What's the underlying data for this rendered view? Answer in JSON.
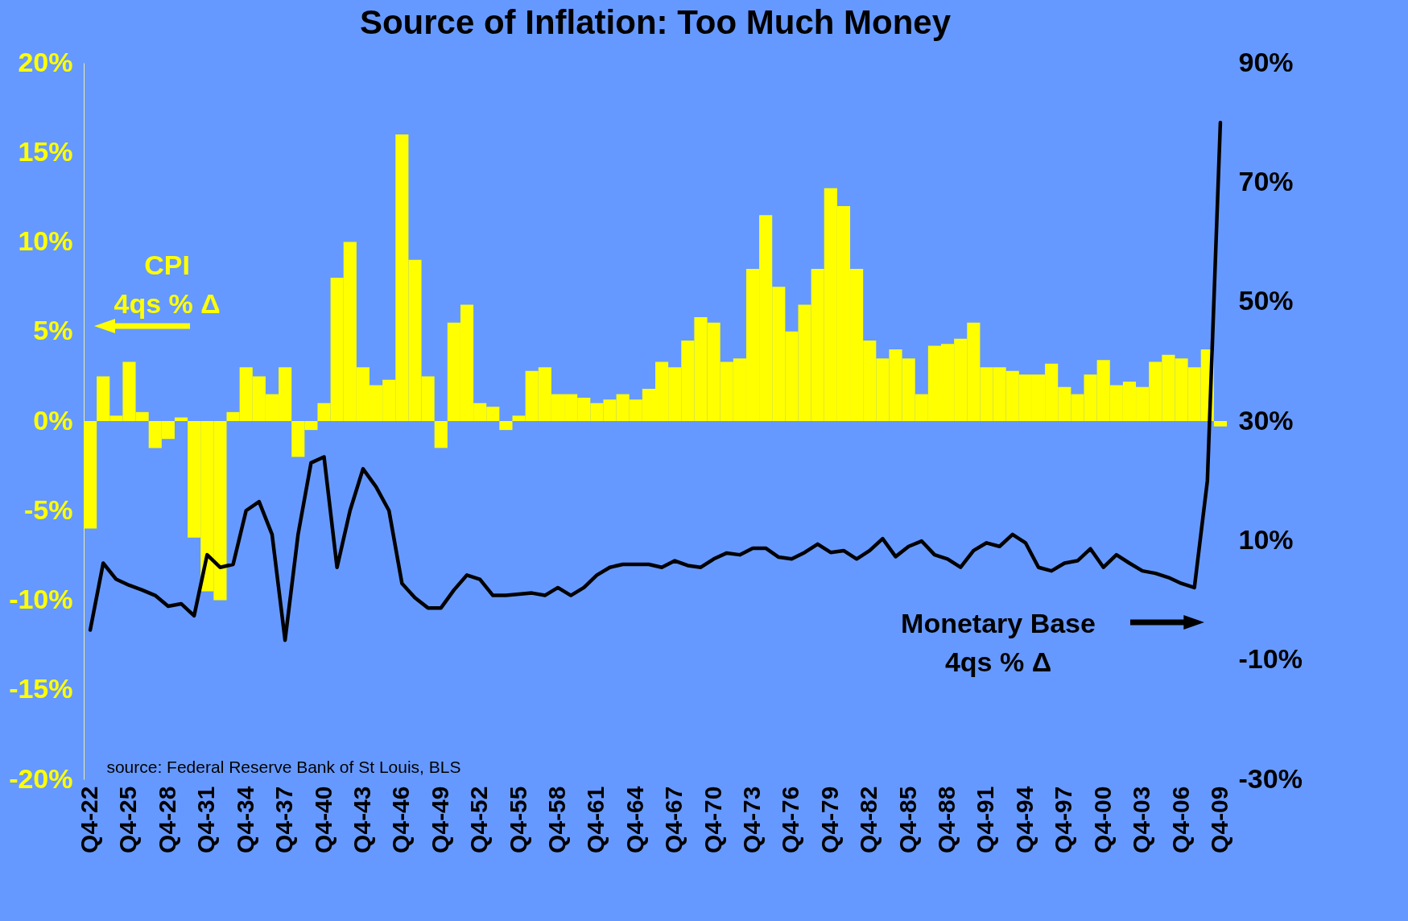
{
  "chart_data": {
    "type": "bar",
    "title": "Source of Inflation: Too Much Money",
    "categories": [
      "Q4-22",
      null,
      null,
      "Q4-25",
      null,
      null,
      "Q4-28",
      null,
      null,
      "Q4-31",
      null,
      null,
      "Q4-34",
      null,
      null,
      "Q4-37",
      null,
      null,
      "Q4-40",
      null,
      null,
      "Q4-43",
      null,
      null,
      "Q4-46",
      null,
      null,
      "Q4-49",
      null,
      null,
      "Q4-52",
      null,
      null,
      "Q4-55",
      null,
      null,
      "Q4-58",
      null,
      null,
      "Q4-61",
      null,
      null,
      "Q4-64",
      null,
      null,
      "Q4-67",
      null,
      null,
      "Q4-70",
      null,
      null,
      "Q4-73",
      null,
      null,
      "Q4-76",
      null,
      null,
      "Q4-79",
      null,
      null,
      "Q4-82",
      null,
      null,
      "Q4-85",
      null,
      null,
      "Q4-88",
      null,
      null,
      "Q4-91",
      null,
      null,
      "Q4-94",
      null,
      null,
      "Q4-97",
      null,
      null,
      "Q4-00",
      null,
      null,
      "Q4-03",
      null,
      null,
      "Q4-06",
      null,
      null,
      "Q4-09"
    ],
    "series": [
      {
        "name": "CPI\n4qs % Δ",
        "color": "#ffff00",
        "values": [
          -6,
          2.5,
          0.3,
          3.3,
          0.5,
          -1.5,
          -1,
          0.2,
          -6.5,
          -9.5,
          -10,
          0.5,
          3,
          2.5,
          1.5,
          3,
          -2,
          -0.5,
          1,
          8,
          10,
          3,
          2,
          2.3,
          16,
          9,
          2.5,
          -1.5,
          5.5,
          6.5,
          1,
          0.8,
          -0.5,
          0.3,
          2.8,
          3,
          1.5,
          1.5,
          1.3,
          1,
          1.2,
          1.5,
          1.2,
          1.8,
          3.3,
          3,
          4.5,
          5.8,
          5.5,
          3.3,
          3.5,
          8.5,
          11.5,
          7.5,
          5,
          6.5,
          8.5,
          13,
          12,
          8.5,
          4.5,
          3.5,
          4,
          3.5,
          1.5,
          4.2,
          4.3,
          4.6,
          5.5,
          3,
          3,
          2.8,
          2.6,
          2.6,
          3.2,
          1.9,
          1.5,
          2.6,
          3.4,
          2,
          2.2,
          1.9,
          3.3,
          3.7,
          3.5,
          3,
          4,
          -0.3
        ]
      },
      {
        "name": "Monetary Base\n4qs % Δ",
        "type": "line",
        "axis": "y2",
        "color": "#000000",
        "values": [
          -5,
          6.2,
          3.5,
          2.5,
          1.7,
          0.8,
          -1,
          -0.6,
          -2.6,
          7.6,
          5.5,
          6,
          15,
          16.5,
          11,
          -6.7,
          11,
          23,
          24,
          5.5,
          15,
          22,
          19,
          15,
          2.8,
          0.4,
          -1.3,
          -1.3,
          1.7,
          4.2,
          3.5,
          0.8,
          0.8,
          1,
          1.2,
          0.8,
          2.1,
          0.8,
          2.1,
          4.2,
          5.5,
          6,
          6,
          6,
          5.5,
          6.6,
          5.8,
          5.5,
          6.9,
          7.9,
          7.6,
          8.7,
          8.7,
          7.2,
          6.9,
          8,
          9.4,
          8,
          8.3,
          6.9,
          8.3,
          10.3,
          7.3,
          9,
          9.9,
          7.6,
          6.9,
          5.5,
          8.3,
          9.6,
          9,
          11,
          9.6,
          5.5,
          4.9,
          6.2,
          6.6,
          8.6,
          5.5,
          7.6,
          6.2,
          4.9,
          4.5,
          3.8,
          2.8,
          2.1,
          20,
          80
        ]
      }
    ],
    "ylim": [
      -20,
      20
    ],
    "yticks": [
      {
        "value": -20,
        "label": "-20%"
      },
      {
        "value": -15,
        "label": "-15%"
      },
      {
        "value": -10,
        "label": "-10%"
      },
      {
        "value": -5,
        "label": "-5%"
      },
      {
        "value": 0,
        "label": "0%"
      },
      {
        "value": 5,
        "label": "5%"
      },
      {
        "value": 10,
        "label": "10%"
      },
      {
        "value": 15,
        "label": "15%"
      },
      {
        "value": 20,
        "label": "20%"
      }
    ],
    "y2lim": [
      -30,
      90
    ],
    "y2ticks": [
      {
        "value": -30,
        "label": "-30%"
      },
      {
        "value": -10,
        "label": "-10%"
      },
      {
        "value": 10,
        "label": "10%"
      },
      {
        "value": 30,
        "label": "30%"
      },
      {
        "value": 50,
        "label": "50%"
      },
      {
        "value": 70,
        "label": "70%"
      },
      {
        "value": 90,
        "label": "90%"
      }
    ],
    "annotations": [
      "source: Federal Reserve Bank of St Louis, BLS"
    ]
  }
}
